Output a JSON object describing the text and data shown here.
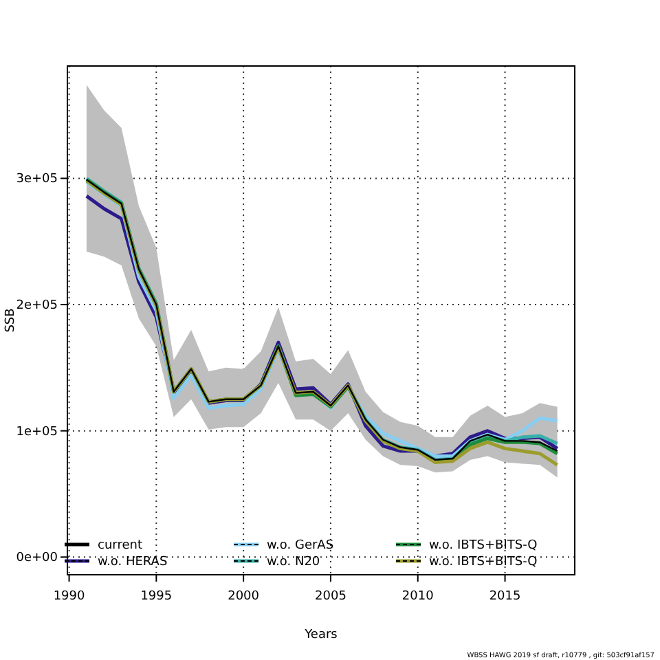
{
  "chart_data": {
    "type": "line",
    "xlabel": "Years",
    "ylabel": "SSB",
    "x": [
      1991,
      1992,
      1993,
      1994,
      1995,
      1996,
      1997,
      1998,
      1999,
      2000,
      2001,
      2002,
      2003,
      2004,
      2005,
      2006,
      2007,
      2008,
      2009,
      2010,
      2011,
      2012,
      2013,
      2014,
      2015,
      2016,
      2017,
      2018
    ],
    "series": [
      {
        "name": "current",
        "color": "#000000",
        "values": [
          299000,
          289000,
          280000,
          228000,
          200000,
          131000,
          149000,
          123000,
          125000,
          125000,
          136000,
          167000,
          130000,
          131000,
          120000,
          136000,
          109000,
          93000,
          87000,
          85000,
          77000,
          78000,
          92000,
          97000,
          92000,
          92000,
          91000,
          84000
        ],
        "lower": [
          242000,
          238000,
          231000,
          189000,
          167000,
          111000,
          125000,
          101000,
          103000,
          103000,
          114000,
          138000,
          109000,
          109000,
          100000,
          114000,
          93000,
          80000,
          73000,
          72000,
          67000,
          68000,
          77000,
          80000,
          75000,
          74000,
          73000,
          63000
        ],
        "upper": [
          374000,
          354000,
          340000,
          278000,
          245000,
          156000,
          180000,
          147000,
          150000,
          149000,
          163000,
          198000,
          155000,
          157000,
          145000,
          164000,
          131000,
          115000,
          107000,
          104000,
          95000,
          95000,
          112000,
          120000,
          111000,
          114000,
          122000,
          119000
        ]
      },
      {
        "name": "w.o. HERAS",
        "color": "#2d1b8c",
        "values": [
          286000,
          276000,
          268000,
          218000,
          190000,
          130000,
          148000,
          122000,
          124000,
          124000,
          137000,
          170000,
          133000,
          134000,
          121000,
          137000,
          104000,
          88000,
          84000,
          84000,
          80000,
          82000,
          95000,
          100000,
          94000,
          94000,
          95000,
          86000
        ]
      },
      {
        "name": "w.o. GerAS",
        "color": "#87cef0",
        "values": [
          297000,
          287000,
          278000,
          222000,
          195000,
          126000,
          144000,
          118000,
          120000,
          121000,
          133000,
          164000,
          129000,
          130000,
          118000,
          135000,
          112000,
          98000,
          92000,
          86000,
          80000,
          80000,
          92000,
          97000,
          93000,
          100000,
          110000,
          108000
        ]
      },
      {
        "name": "w.o. N20",
        "color": "#3aafa9",
        "values": [
          300000,
          290000,
          281000,
          229000,
          201000,
          131000,
          149000,
          123000,
          125000,
          125000,
          136000,
          167000,
          129000,
          130000,
          120000,
          136000,
          109000,
          93000,
          87000,
          85000,
          77000,
          78000,
          91000,
          96000,
          92000,
          95000,
          96000,
          90000
        ]
      },
      {
        "name": "w.o. IBTS+BITS-Q",
        "color": "#1e8c3c",
        "values": [
          299000,
          289000,
          280000,
          228000,
          200000,
          131000,
          149000,
          123000,
          125000,
          125000,
          136000,
          167000,
          128000,
          129000,
          119000,
          135000,
          108000,
          92000,
          86000,
          84000,
          76000,
          77000,
          89000,
          94000,
          91000,
          91000,
          90000,
          82000
        ]
      },
      {
        "name": "w.o. IBTS+BITS-Q",
        "color": "#9c9c2e",
        "values": [
          298000,
          288000,
          279000,
          227000,
          199000,
          131000,
          149000,
          123000,
          125000,
          125000,
          136000,
          166000,
          130000,
          131000,
          120000,
          136000,
          108000,
          92000,
          86000,
          84000,
          75000,
          76000,
          86000,
          91000,
          86000,
          84000,
          82000,
          73000
        ]
      }
    ],
    "xlim": [
      1989.9,
      2019
    ],
    "xticks": [
      1990,
      1995,
      2000,
      2005,
      2010,
      2015
    ],
    "ylim": [
      -14000,
      389000
    ],
    "yticks": [
      {
        "value": 0,
        "label": "0e+00"
      },
      {
        "value": 100000,
        "label": "1e+05"
      },
      {
        "value": 200000,
        "label": "2e+05"
      },
      {
        "value": 300000,
        "label": "3e+05"
      }
    ],
    "grid": true,
    "legend": "bottom",
    "line_style": "solid",
    "annotations": [
      "WBSS HAWG 2019 sf draft, r10779 , git: 503cf91af157"
    ]
  }
}
